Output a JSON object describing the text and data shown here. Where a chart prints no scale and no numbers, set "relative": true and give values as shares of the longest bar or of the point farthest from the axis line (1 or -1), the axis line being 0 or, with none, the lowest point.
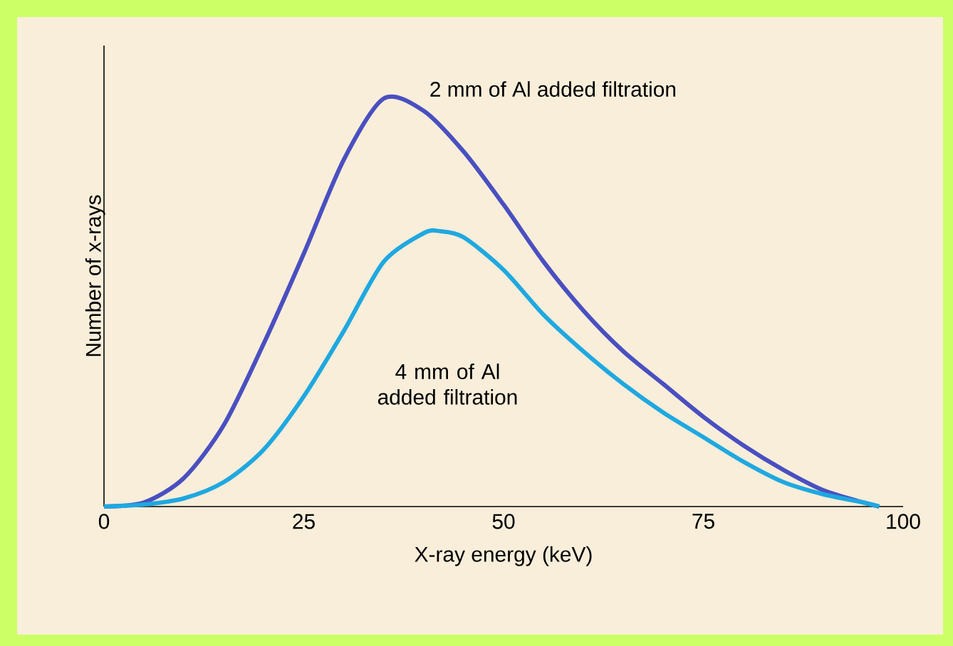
{
  "chart_data": {
    "type": "line",
    "relative": true,
    "xlabel": "X-ray energy (keV)",
    "ylabel": "Number of x-rays",
    "xlim": [
      0,
      100
    ],
    "xticks": [
      0,
      25,
      50,
      75,
      100
    ],
    "grid": false,
    "marker": "none",
    "line_style": "solid",
    "series": [
      {
        "name": "2 mm of Al added filtration",
        "color": "#4a4fc0",
        "x": [
          0,
          5,
          10,
          15,
          20,
          25,
          30,
          35,
          40,
          45,
          50,
          55,
          60,
          65,
          70,
          75,
          80,
          85,
          90,
          95,
          97
        ],
        "values": [
          0,
          0.01,
          0.07,
          0.2,
          0.4,
          0.62,
          0.85,
          1.0,
          0.97,
          0.87,
          0.74,
          0.6,
          0.48,
          0.38,
          0.3,
          0.22,
          0.15,
          0.09,
          0.04,
          0.01,
          0
        ]
      },
      {
        "name": "4 mm of Al added filtration",
        "color": "#1fa8e0",
        "x": [
          0,
          5,
          10,
          15,
          20,
          25,
          30,
          35,
          40,
          42,
          45,
          50,
          55,
          60,
          65,
          70,
          75,
          80,
          85,
          90,
          95,
          97
        ],
        "values": [
          0,
          0.005,
          0.02,
          0.06,
          0.14,
          0.27,
          0.43,
          0.6,
          0.67,
          0.675,
          0.66,
          0.58,
          0.47,
          0.38,
          0.3,
          0.23,
          0.17,
          0.11,
          0.06,
          0.03,
          0.01,
          0
        ]
      }
    ]
  }
}
